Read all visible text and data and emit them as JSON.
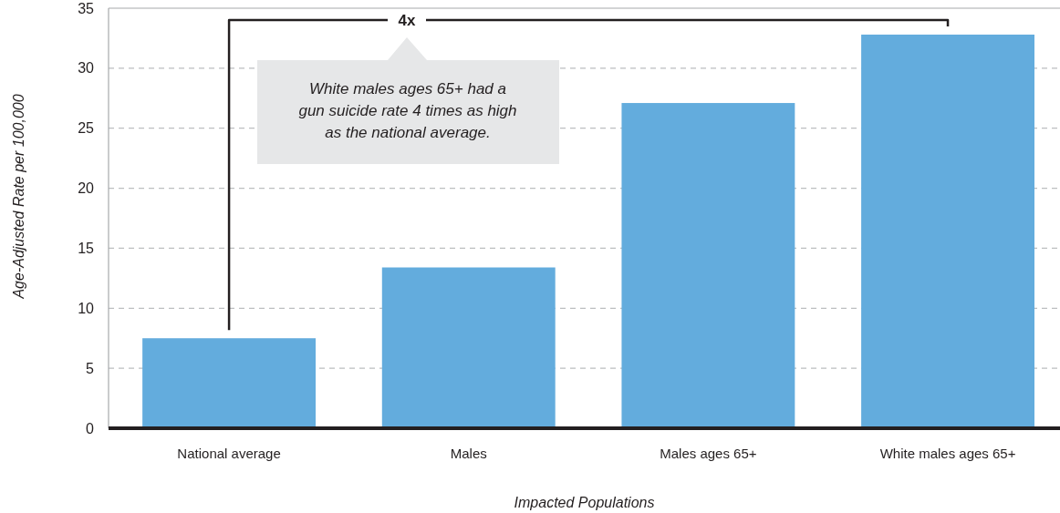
{
  "chart_data": {
    "type": "bar",
    "categories": [
      "National average",
      "Males",
      "Males ages 65+",
      "White males ages 65+"
    ],
    "values": [
      7.5,
      13.4,
      27.1,
      32.8
    ],
    "color": "#63acdd",
    "ylim": [
      0,
      35
    ],
    "yticks": [
      0,
      5,
      10,
      15,
      20,
      25,
      30,
      35
    ],
    "grid": "y",
    "xlabel": "Impacted Populations",
    "ylabel": "Age-Adjusted Rate per 100,000",
    "annotations": [
      "4x",
      "White males ages 65+ had a\ngun suicide rate 4 times as high\nas the national average."
    ]
  }
}
